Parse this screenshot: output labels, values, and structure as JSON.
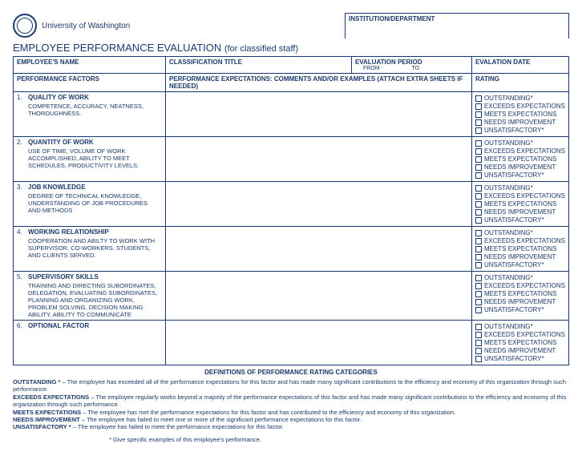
{
  "header": {
    "university": "University of Washington",
    "institution_label": "INSTITUTION/DEPARTMENT",
    "title_main": "EMPLOYEE PERFORMANCE EVALUATION",
    "title_sub": "(for classified staff)"
  },
  "top_row": {
    "employee_name": "EMPLOYEE'S NAME",
    "classification_title": "CLASSIFICATION TITLE",
    "evaluation_period": "EVALUATION PERIOD",
    "from": "FROM",
    "to": "TO",
    "evaluation_date": "EVALATION DATE"
  },
  "table_headers": {
    "factors": "PERFORMANCE FACTORS",
    "comments": "PERFORMANCE EXPECTATIONS: COMMENTS AND/OR EXAMPLES (ATTACH EXTRA SHEETS IF NEEDED)",
    "rating": "RATING"
  },
  "ratings": [
    "OUTSTANDING*",
    "EXCEEDS EXPECTATIONS",
    "MEETS EXPECTATIONS",
    "NEEDS IMPROVEMENT",
    "UNSATISFACTORY*"
  ],
  "factors": [
    {
      "num": "1.",
      "title": "QUALITY OF WORK",
      "desc": "COMPETENCE, ACCURACY, NEATNESS, THOROUGHNESS."
    },
    {
      "num": "2.",
      "title": "QUANTITY OF WORK",
      "desc": "USE OF TIME, VOLUME OF WORK ACCOMPLISHED, ABILITY TO MEET SCHEDULES, PRODUCTIVITY LEVELS."
    },
    {
      "num": "3.",
      "title": "JOB KNOWLEDGE",
      "desc": "DEGREE OF TECHNICAL KNOWLEDGE, UNDERSTANDING OF JOB PROCEDURES AND METHODS"
    },
    {
      "num": "4.",
      "title": "WORKING RELATIONSHIP",
      "desc": "COOPERATION AND ABILTY TO WORK WITH SUPERVISOR, CO-WORKERS, STUDENTS, AND CLIENTS SERVED."
    },
    {
      "num": "5.",
      "title": "SUPERVISORY SKILLS",
      "desc": "TRAINING AND DIRECTING SUBORDINATES, DELEGATION, EVALUATING SUBORDINATES, PLANNING AND ORGANIZING WORK, PROBLEM SOLVING, DECISION MAKING ABILITY, ABILITY TO COMMUNICATE"
    },
    {
      "num": "6.",
      "title": "OPTIONAL FACTOR",
      "desc": ""
    }
  ],
  "defs": {
    "heading": "DEFINITIONS OF PERFORMANCE RATING CATEGORIES",
    "outstanding_label": "OUTSTANDING *",
    "outstanding_text": " – The employee has exceeded all of the performance expectations for this factor and has made many significant contributions to the efficiency and economy of this organization through such performance.",
    "exceeds_label": "EXCEEDS EXPECTATIONS",
    "exceeds_text": " – The employee regularly works beyond a majority of the performance expectations of this factor and has made many significant contributions to the efficiency and economy of this organization through such performance.",
    "meets_label": "MEETS EXPECTATIONS",
    "meets_text": " – The employee has met the performance expectations for this factor and has contributed to the efficiency and economy of this organization.",
    "needs_label": "NEEDS IMPROVEMENT",
    "needs_text": " – The employee has failed to meet one or more of the significant performance expectations for this factor.",
    "unsat_label": "UNSATISFACTORY *",
    "unsat_text": " – The employee has failed to meet the performance expectations for this factor.",
    "footnote": "* Give specific examples of this employee's performance."
  }
}
